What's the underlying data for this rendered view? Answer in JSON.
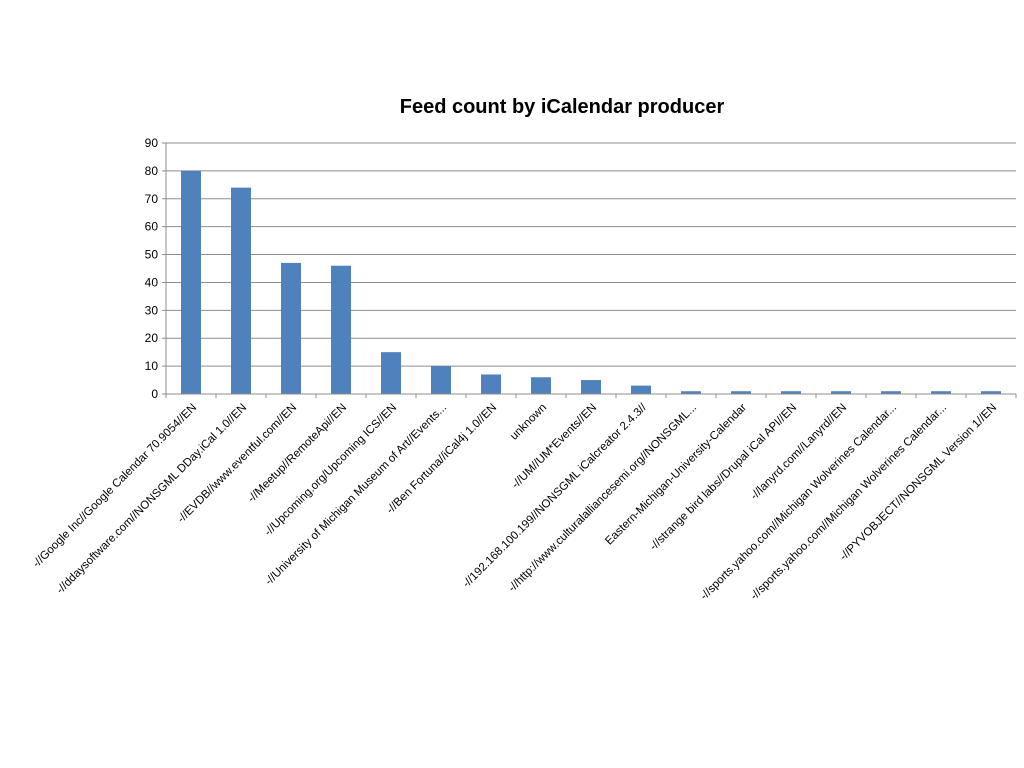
{
  "chart_data": {
    "type": "bar",
    "title": "Feed count by iCalendar producer",
    "xlabel": "",
    "ylabel": "",
    "ylim": [
      0,
      90
    ],
    "yticks": [
      0,
      10,
      20,
      30,
      40,
      50,
      60,
      70,
      80,
      90
    ],
    "grid": true,
    "legend": "none",
    "bar_color": "#4F81BD",
    "grid_color": "#8C8C8C",
    "categories": [
      "-//Google Inc//Google Calendar 70.9054//EN",
      "-//ddaysoftware.com//NONSGML DDay.iCal 1.0//EN",
      "-//EVDB//www.eventful.com//EN",
      "-//Meetup//RemoteApi//EN",
      "-//Upcoming.org/Upcoming ICS//EN",
      "-//University of Michigan Museum of Art//Events...",
      "-//Ben Fortuna//iCal4j 1.0//EN",
      "unknown",
      "-//UM//UM*Events//EN",
      "-//192.168.100.199//NONSGML iCalcreator 2.4.3//",
      "-//http://www.culturalalliancesemi.org//NONSGML...",
      "Eastern-Michigan-University-Calendar",
      "-//strange bird labs//Drupal iCal API//EN",
      "-//lanyrd.com//Lanyrd//EN",
      "-//sports.yahoo.com//Michigan Wolverines Calendar...",
      "-//sports.yahoo.com//Michigan Wolverines Calendar...",
      "-//PYVOBJECT//NONSGML Version 1//EN"
    ],
    "values": [
      80,
      74,
      47,
      46,
      15,
      10,
      7,
      6,
      5,
      3,
      1,
      1,
      1,
      1,
      1,
      1,
      1
    ]
  }
}
